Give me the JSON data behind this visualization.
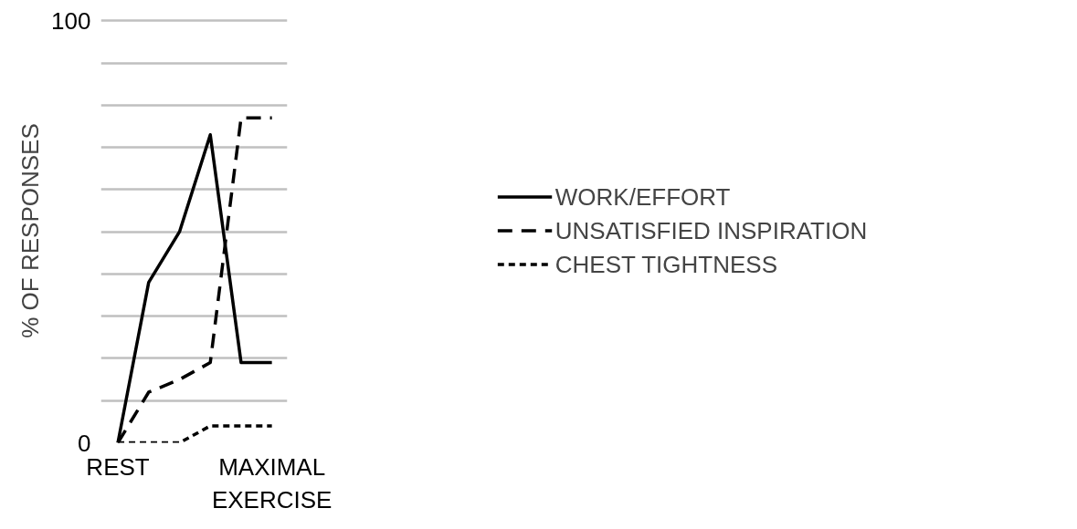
{
  "chart_data": {
    "type": "line",
    "ylabel": "% OF RESPONSES",
    "categories": [
      "REST",
      null,
      null,
      null,
      null,
      "MAXIMAL EXERCISE"
    ],
    "series": [
      {
        "name": "WORK/EFFORT",
        "color": "#000000",
        "line_style": "solid",
        "values": [
          0,
          38,
          50,
          73,
          19,
          19
        ]
      },
      {
        "name": "UNSATISFIED INSPIRATION",
        "color": "#000000",
        "line_style": "dashed",
        "values": [
          0,
          12,
          15,
          19,
          77,
          77
        ]
      },
      {
        "name": "CHEST TIGHTNESS",
        "color": "#000000",
        "line_style": "dotted",
        "values": [
          0,
          0,
          0,
          4,
          4,
          4
        ]
      }
    ],
    "ylim": [
      0,
      100
    ],
    "yticks": [
      0,
      {
        "value": 10,
        "label": null
      },
      {
        "value": 20,
        "label": null
      },
      {
        "value": 30,
        "label": null
      },
      {
        "value": 40,
        "label": null
      },
      {
        "value": 50,
        "label": null
      },
      {
        "value": 60,
        "label": null
      },
      {
        "value": 70,
        "label": null
      },
      {
        "value": 80,
        "label": null
      },
      {
        "value": 90,
        "label": null
      },
      100
    ],
    "grid": "y",
    "legend": "right",
    "marker": "none"
  }
}
